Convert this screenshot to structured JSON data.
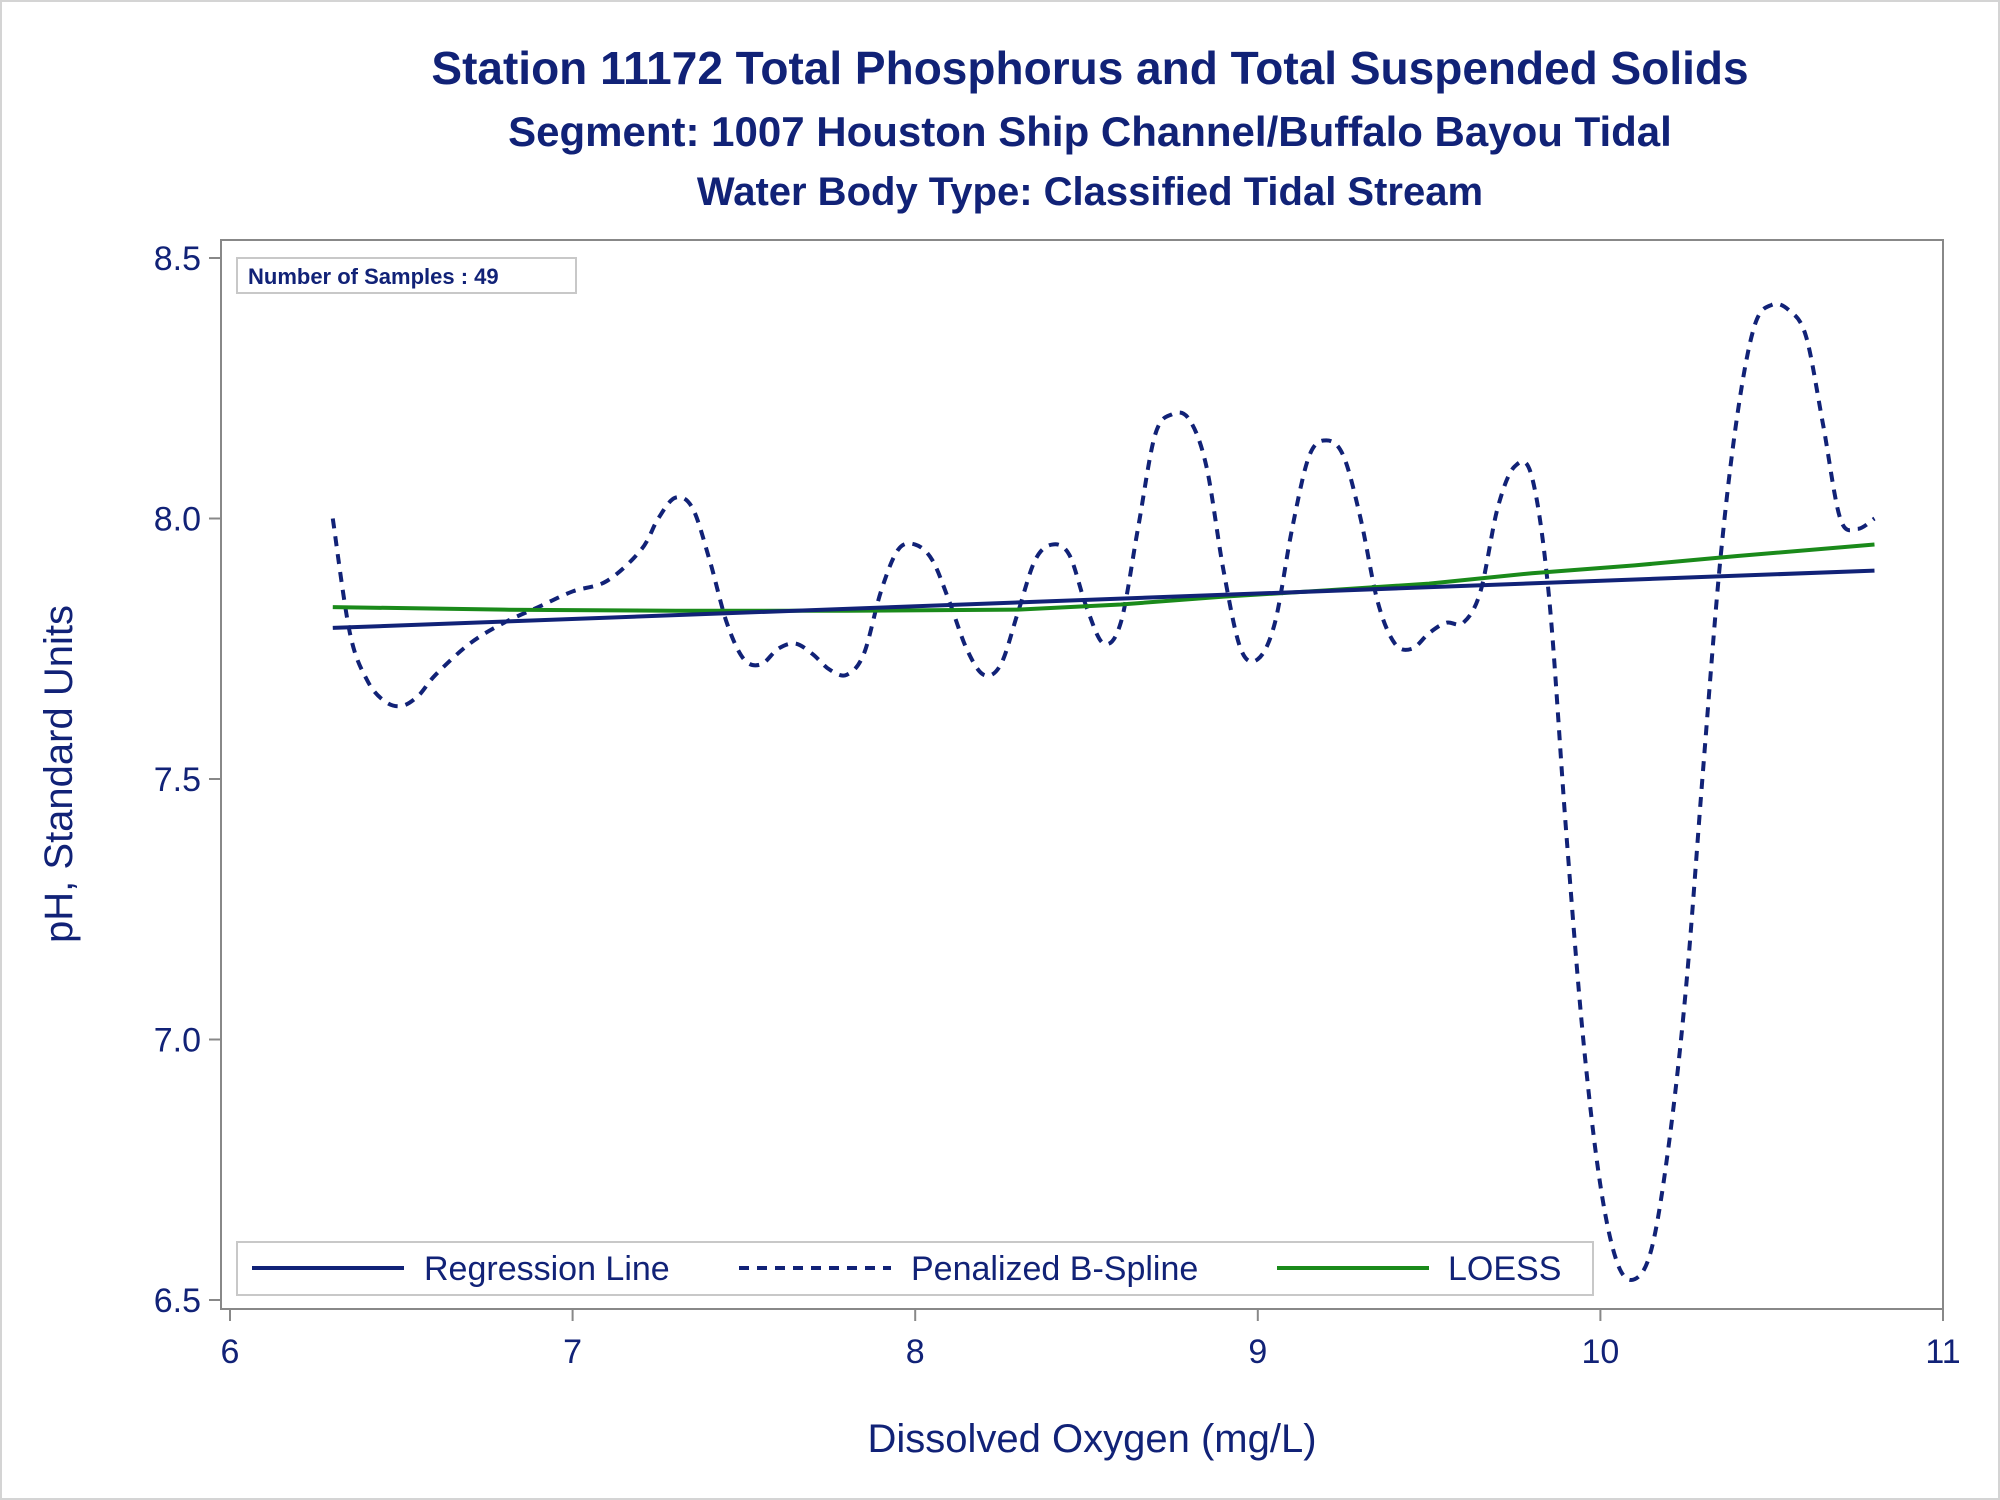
{
  "chart_data": {
    "type": "line",
    "title": "Station 11172  Total Phosphorus and Total Suspended Solids",
    "subtitle": "Segment: 1007  Houston Ship Channel/Buffalo Bayou Tidal",
    "subtitle2": "Water Body Type: Classified Tidal Stream",
    "xlabel": "Dissolved Oxygen (mg/L)",
    "ylabel": "pH, Standard Units",
    "xlim": [
      6,
      11
    ],
    "ylim": [
      6.5,
      8.5
    ],
    "x_ticks": [
      "6",
      "7",
      "8",
      "9",
      "10",
      "11"
    ],
    "y_ticks": [
      "6.5",
      "7.0",
      "7.5",
      "8.0",
      "8.5"
    ],
    "inset_label": "Number of Samples : 49",
    "legend_position": "bottom-left inside",
    "series": [
      {
        "name": "Regression Line",
        "style": "solid",
        "color": "#112277",
        "x": [
          6.3,
          10.8
        ],
        "y": [
          7.79,
          7.9
        ]
      },
      {
        "name": "Penalized B-Spline",
        "style": "dashed",
        "color": "#112277",
        "x": [
          6.3,
          6.35,
          6.4,
          6.45,
          6.5,
          6.55,
          6.6,
          6.7,
          6.8,
          6.9,
          7.0,
          7.1,
          7.2,
          7.25,
          7.3,
          7.35,
          7.4,
          7.45,
          7.5,
          7.55,
          7.6,
          7.65,
          7.7,
          7.75,
          7.8,
          7.85,
          7.9,
          7.95,
          8.0,
          8.05,
          8.1,
          8.15,
          8.2,
          8.25,
          8.3,
          8.35,
          8.4,
          8.45,
          8.5,
          8.55,
          8.6,
          8.65,
          8.7,
          8.75,
          8.8,
          8.85,
          8.9,
          8.95,
          9.0,
          9.05,
          9.1,
          9.15,
          9.2,
          9.25,
          9.3,
          9.35,
          9.4,
          9.45,
          9.5,
          9.55,
          9.6,
          9.65,
          9.7,
          9.75,
          9.8,
          9.85,
          9.9,
          9.95,
          10.0,
          10.05,
          10.1,
          10.15,
          10.2,
          10.25,
          10.3,
          10.35,
          10.4,
          10.45,
          10.5,
          10.55,
          10.6,
          10.65,
          10.7,
          10.75,
          10.8
        ],
        "y": [
          8.0,
          7.78,
          7.69,
          7.65,
          7.64,
          7.66,
          7.7,
          7.76,
          7.8,
          7.83,
          7.86,
          7.88,
          7.94,
          8.0,
          8.04,
          8.02,
          7.92,
          7.8,
          7.73,
          7.72,
          7.75,
          7.76,
          7.74,
          7.71,
          7.7,
          7.74,
          7.86,
          7.94,
          7.95,
          7.92,
          7.84,
          7.75,
          7.7,
          7.72,
          7.82,
          7.92,
          7.95,
          7.93,
          7.83,
          7.76,
          7.8,
          7.98,
          8.16,
          8.2,
          8.19,
          8.1,
          7.9,
          7.75,
          7.73,
          7.8,
          7.98,
          8.12,
          8.15,
          8.12,
          8.0,
          7.84,
          7.76,
          7.75,
          7.78,
          7.8,
          7.8,
          7.86,
          8.02,
          8.1,
          8.08,
          7.85,
          7.4,
          7.0,
          6.72,
          6.57,
          6.54,
          6.6,
          6.8,
          7.1,
          7.52,
          7.92,
          8.2,
          8.37,
          8.41,
          8.4,
          8.35,
          8.18,
          8.0,
          7.98,
          8.0
        ],
        "note_removed": null
      },
      {
        "name": "LOESS",
        "style": "solid",
        "color": "#1a8a1a",
        "x": [
          6.3,
          6.8,
          7.3,
          7.8,
          8.3,
          8.6,
          8.9,
          9.2,
          9.5,
          9.8,
          10.1,
          10.4,
          10.8
        ],
        "y": [
          7.83,
          7.825,
          7.823,
          7.823,
          7.825,
          7.835,
          7.85,
          7.862,
          7.875,
          7.895,
          7.91,
          7.928,
          7.95
        ]
      }
    ]
  }
}
